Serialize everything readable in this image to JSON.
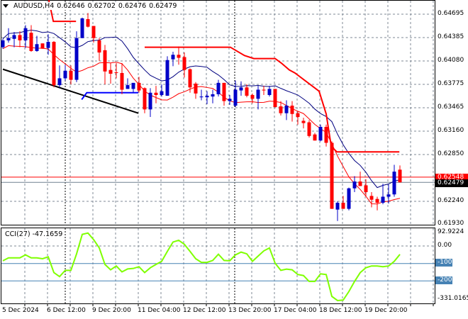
{
  "header": {
    "symbol": "AUDUSD,H4",
    "open": "0.62646",
    "high": "0.62702",
    "low": "0.62476",
    "close": "0.62479"
  },
  "price_axis": {
    "labels": [
      "0.64695",
      "0.64385",
      "0.64080",
      "0.63775",
      "0.63465",
      "0.63160",
      "0.62850",
      "0.62240",
      "0.61930"
    ],
    "ask_line": "0.62548",
    "bid_line": "0.62479"
  },
  "cci": {
    "title": "CCI(27) -47.1659",
    "max_label": "92.9224",
    "zero_label": "0.00",
    "level1_label": "-100",
    "level2_label": "-200",
    "min_label": "-331.0165",
    "values": [
      -84,
      -67,
      -67,
      -67,
      -50,
      -67,
      -67,
      -72,
      -61,
      -152,
      -175,
      -139,
      -139,
      -44,
      68,
      76,
      38,
      -10,
      -105,
      -136,
      -114,
      -148,
      -131,
      -128,
      -118,
      -152,
      -124,
      -105,
      -87,
      -30,
      24,
      34,
      11,
      -30,
      -72,
      -93,
      -93,
      -82,
      -46,
      -82,
      -84,
      -50,
      -34,
      -44,
      -87,
      -57,
      -27,
      -10,
      -98,
      -139,
      -132,
      -136,
      -163,
      -169,
      -203,
      -203,
      -159,
      -163,
      -289,
      -313,
      -310,
      -261,
      -203,
      -152,
      -124,
      -114,
      -114,
      -118,
      -114,
      -87,
      -47
    ]
  },
  "time_axis": [
    "5 Dec 2024",
    "6 Dec 12:00",
    "9 Dec 20:00",
    "11 Dec 04:00",
    "12 Dec 12:00",
    "13 Dec 20:00",
    "17 Dec 04:00",
    "18 Dec 12:00",
    "19 Dec 20:00"
  ],
  "colors": {
    "bull": "#0000c8",
    "bear": "#ff0000",
    "ma_upper": "#000080",
    "ma_lower": "#ff0000",
    "cci": "#7fff00",
    "level": "#4682b4",
    "grid": "#7f8a96"
  },
  "chart_data": {
    "type": "candlestick",
    "ylim": [
      0.6193,
      0.64695
    ],
    "ohlc": [
      [
        0.6426,
        0.6437,
        0.6424,
        0.6435
      ],
      [
        0.6435,
        0.6451,
        0.6432,
        0.6438
      ],
      [
        0.6437,
        0.6446,
        0.6426,
        0.6442
      ],
      [
        0.6442,
        0.6447,
        0.6426,
        0.6435
      ],
      [
        0.6435,
        0.6455,
        0.6425,
        0.6451
      ],
      [
        0.6445,
        0.6455,
        0.642,
        0.6421
      ],
      [
        0.6421,
        0.6441,
        0.642,
        0.643
      ],
      [
        0.6431,
        0.6431,
        0.6424,
        0.6424
      ],
      [
        0.6425,
        0.6443,
        0.6416,
        0.6433
      ],
      [
        0.6433,
        0.6434,
        0.6373,
        0.6376
      ],
      [
        0.6376,
        0.6402,
        0.6373,
        0.6385
      ],
      [
        0.6385,
        0.6403,
        0.6382,
        0.6395
      ],
      [
        0.6395,
        0.6402,
        0.6377,
        0.6383
      ],
      [
        0.6383,
        0.6447,
        0.638,
        0.6438
      ],
      [
        0.6438,
        0.6465,
        0.6438,
        0.6464
      ],
      [
        0.6463,
        0.6471,
        0.6452,
        0.6453
      ],
      [
        0.6454,
        0.6454,
        0.6432,
        0.6438
      ],
      [
        0.6435,
        0.6438,
        0.6408,
        0.6419
      ],
      [
        0.6422,
        0.6429,
        0.6377,
        0.6394
      ],
      [
        0.6396,
        0.6405,
        0.6378,
        0.6391
      ],
      [
        0.6393,
        0.6405,
        0.6385,
        0.6392
      ],
      [
        0.6392,
        0.6405,
        0.6364,
        0.637
      ],
      [
        0.6371,
        0.6385,
        0.6371,
        0.6376
      ],
      [
        0.6371,
        0.6379,
        0.6366,
        0.6379
      ],
      [
        0.6379,
        0.6387,
        0.6366,
        0.6369
      ],
      [
        0.6372,
        0.6373,
        0.6339,
        0.6344
      ],
      [
        0.6344,
        0.6372,
        0.6334,
        0.6366
      ],
      [
        0.6366,
        0.6375,
        0.6352,
        0.6363
      ],
      [
        0.6363,
        0.6377,
        0.6361,
        0.6368
      ],
      [
        0.6362,
        0.6414,
        0.6362,
        0.6409
      ],
      [
        0.641,
        0.642,
        0.6401,
        0.6416
      ],
      [
        0.6416,
        0.6427,
        0.6403,
        0.6412
      ],
      [
        0.6413,
        0.6419,
        0.6386,
        0.6396
      ],
      [
        0.6397,
        0.6398,
        0.6366,
        0.6373
      ],
      [
        0.6378,
        0.638,
        0.6358,
        0.6365
      ],
      [
        0.636,
        0.637,
        0.6356,
        0.6361
      ],
      [
        0.636,
        0.6368,
        0.6351,
        0.6362
      ],
      [
        0.6361,
        0.637,
        0.6352,
        0.6364
      ],
      [
        0.6364,
        0.6383,
        0.6361,
        0.6379
      ],
      [
        0.6379,
        0.6379,
        0.6349,
        0.6355
      ],
      [
        0.6355,
        0.6363,
        0.635,
        0.6358
      ],
      [
        0.6349,
        0.6382,
        0.6347,
        0.637
      ],
      [
        0.6369,
        0.6381,
        0.6362,
        0.6373
      ],
      [
        0.6373,
        0.6377,
        0.636,
        0.6362
      ],
      [
        0.6363,
        0.6365,
        0.6352,
        0.6358
      ],
      [
        0.6358,
        0.6375,
        0.6344,
        0.637
      ],
      [
        0.637,
        0.6375,
        0.6363,
        0.6369
      ],
      [
        0.6363,
        0.6375,
        0.6361,
        0.6371
      ],
      [
        0.6371,
        0.6371,
        0.6347,
        0.6347
      ],
      [
        0.6348,
        0.6355,
        0.6336,
        0.6339
      ],
      [
        0.6339,
        0.6356,
        0.633,
        0.6349
      ],
      [
        0.6349,
        0.6355,
        0.6328,
        0.6338
      ],
      [
        0.6339,
        0.6342,
        0.6324,
        0.6334
      ],
      [
        0.6329,
        0.6333,
        0.6319,
        0.6326
      ],
      [
        0.6327,
        0.633,
        0.6307,
        0.6309
      ],
      [
        0.6311,
        0.6313,
        0.6303,
        0.6303
      ],
      [
        0.6303,
        0.6324,
        0.6302,
        0.6321
      ],
      [
        0.6321,
        0.6324,
        0.6295,
        0.63
      ],
      [
        0.63,
        0.6302,
        0.6213,
        0.6213
      ],
      [
        0.6212,
        0.6223,
        0.6197,
        0.6221
      ],
      [
        0.6221,
        0.623,
        0.6213,
        0.6213
      ],
      [
        0.6213,
        0.6241,
        0.6211,
        0.624
      ],
      [
        0.624,
        0.6256,
        0.6235,
        0.6249
      ],
      [
        0.6249,
        0.6262,
        0.6243,
        0.6243
      ],
      [
        0.6244,
        0.6252,
        0.623,
        0.6235
      ],
      [
        0.623,
        0.6235,
        0.6215,
        0.6225
      ],
      [
        0.6226,
        0.6229,
        0.6211,
        0.6221
      ],
      [
        0.6221,
        0.6246,
        0.6219,
        0.6229
      ],
      [
        0.6229,
        0.6245,
        0.622,
        0.6232
      ],
      [
        0.6232,
        0.6271,
        0.6229,
        0.6262
      ],
      [
        0.62646,
        0.62702,
        0.62476,
        0.62479
      ]
    ],
    "step_line": [
      [
        [
          8.1,
          0.6488
        ],
        [
          8.9,
          0.646
        ],
        [
          12.9,
          0.646
        ]
      ],
      [
        [
          25,
          0.6426
        ],
        [
          40.1,
          0.6426
        ],
        [
          42.6,
          0.6415
        ],
        [
          44.25,
          0.6411
        ],
        [
          48,
          0.6411
        ],
        [
          49.1,
          0.6405
        ],
        [
          50.5,
          0.6396
        ],
        [
          51.5,
          0.6392
        ],
        [
          55.75,
          0.6368
        ],
        [
          57,
          0.6338
        ],
        [
          57.9,
          0.6295
        ],
        [
          58.9,
          0.6288
        ],
        [
          69.9,
          0.6288
        ]
      ]
    ],
    "trend_line": [
      [
        0,
        0.6397
      ],
      [
        23.9,
        0.6339
      ]
    ],
    "blue_line": [
      [
        13.9,
        0.6357
      ],
      [
        14.8,
        0.6366
      ],
      [
        23.9,
        0.6366
      ]
    ]
  }
}
